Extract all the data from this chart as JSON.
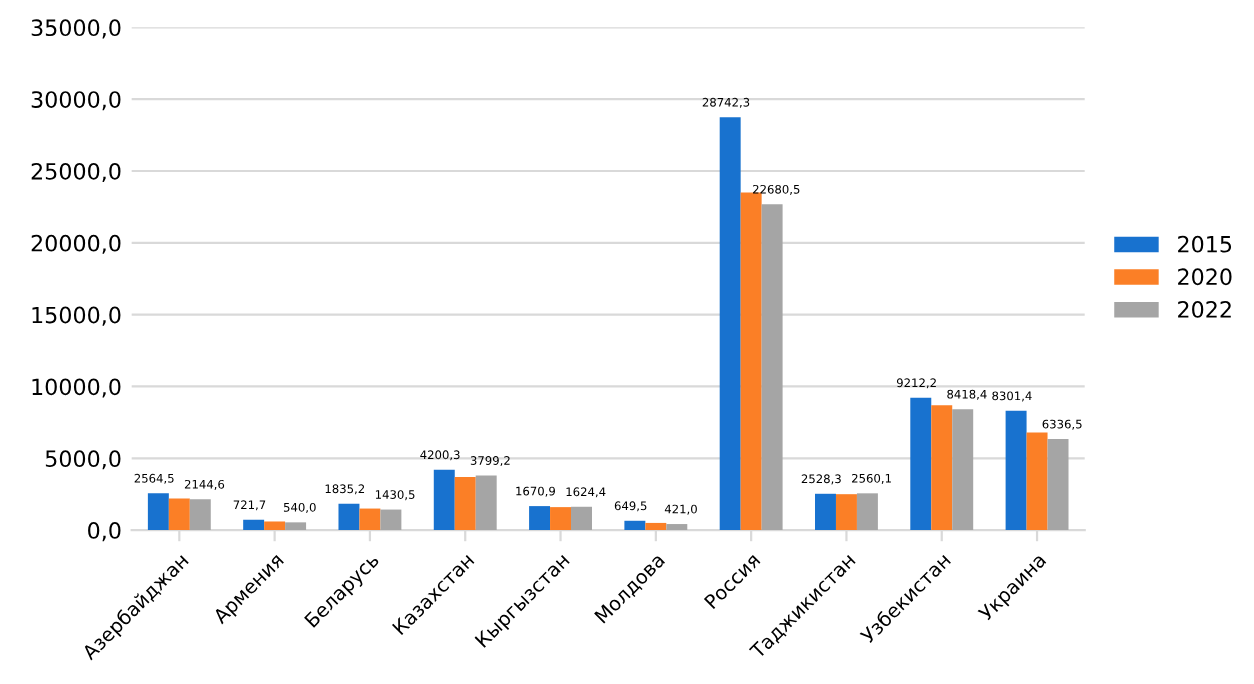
{
  "chart_data": {
    "type": "bar",
    "categories": [
      "Азербайджан",
      "Армения",
      "Беларусь",
      "Казахстан",
      "Кыргызстан",
      "Молдова",
      "Россия",
      "Таджикистан",
      "Узбекистан",
      "Украина"
    ],
    "series": [
      {
        "name": "2015",
        "color": "#1872cf",
        "values": [
          2564.5,
          721.7,
          1835.2,
          4200.3,
          1670.9,
          649.5,
          28742.3,
          2528.3,
          9212.2,
          8301.4
        ],
        "value_labels": [
          "2564,5",
          "721,7",
          "1835,2",
          "4200,3",
          "1670,9",
          "649,5",
          "28742,3",
          "2528,3",
          "9212,2",
          "8301,4"
        ]
      },
      {
        "name": "2020",
        "color": "#fb7f26",
        "values": [
          2200,
          600,
          1500,
          3700,
          1600,
          500,
          23500,
          2500,
          8700,
          6800
        ]
      },
      {
        "name": "2022",
        "color": "#a5a5a5",
        "values": [
          2144.6,
          540.0,
          1430.5,
          3799.2,
          1624.4,
          421.0,
          22680.5,
          2560.1,
          8418.4,
          6336.5
        ],
        "value_labels": [
          "2144,6",
          "540,0",
          "1430,5",
          "3799,2",
          "1624,4",
          "421,0",
          "22680,5",
          "2560,1",
          "8418,4",
          "6336,5"
        ]
      }
    ],
    "ylim": [
      0,
      35000
    ],
    "yticks": [
      {
        "value": 0,
        "label": "0,0"
      },
      {
        "value": 5000,
        "label": "5000,0"
      },
      {
        "value": 10000,
        "label": "10000,0"
      },
      {
        "value": 15000,
        "label": "15000,0"
      },
      {
        "value": 20000,
        "label": "20000,0"
      },
      {
        "value": 25000,
        "label": "25000,0"
      },
      {
        "value": 30000,
        "label": "30000,0"
      },
      {
        "value": 35000,
        "label": "35000,0"
      }
    ],
    "grid": "y",
    "legend": "right"
  }
}
